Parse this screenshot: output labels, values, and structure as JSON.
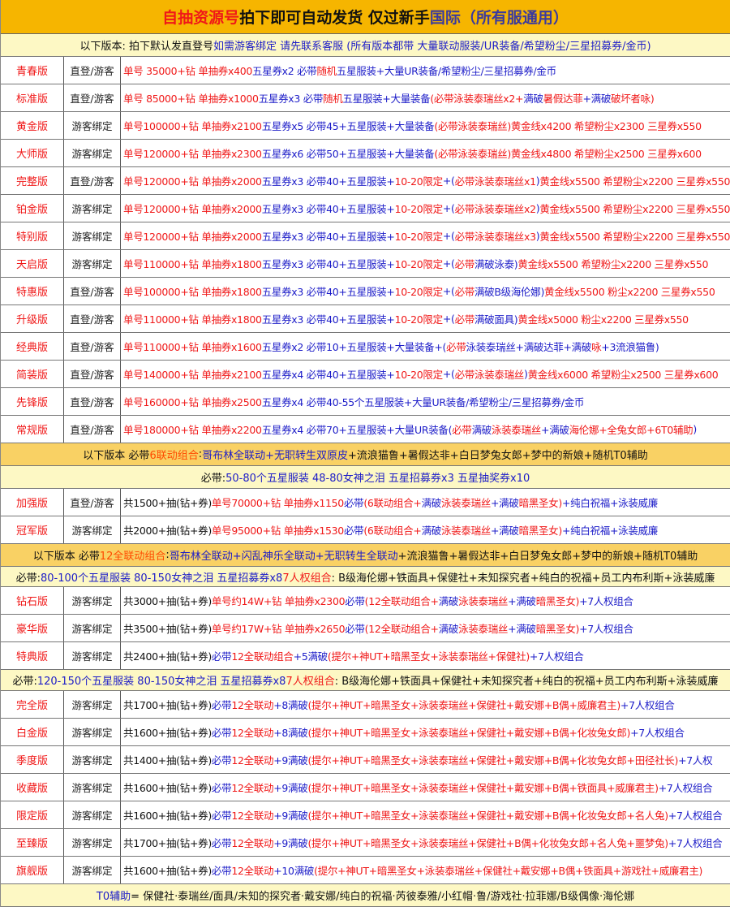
{
  "colors": {
    "red": "#f01818",
    "blue": "#1c1cc8",
    "title_bg": "#f6b500",
    "banner_light": "#fdf8c4",
    "banner_orange": "#f9d164"
  },
  "sections": [
    {
      "kind": "title",
      "h": 42,
      "segs": [
        {
          "c": "r",
          "t": "自抽资源号 "
        },
        {
          "c": "k",
          "t": "拍下即可自动发货 仅过新手 "
        },
        {
          "c": "t",
          "t": "国际（所有服通用）"
        }
      ]
    },
    {
      "kind": "banner",
      "style": "light",
      "h": 28,
      "segs": [
        {
          "c": "k",
          "t": "以下版本: 拍下默认发直登号  "
        },
        {
          "c": "b",
          "t": "如需游客绑定 请先联系客服 (所有版本都带 大量联动服装/UR装备/希望粉尘/三星招募券/金币)"
        }
      ]
    },
    {
      "kind": "row",
      "edition": "青春版",
      "type": "直登/游客",
      "segs": [
        {
          "c": "r",
          "t": "单号  35000+钻 单抽券x400  "
        },
        {
          "c": "b",
          "t": "五星券x2  必带"
        },
        {
          "c": "r",
          "t": "随机"
        },
        {
          "c": "b",
          "t": "五星服装+大量UR装备/希望粉尘/三星招募券/金币"
        }
      ]
    },
    {
      "kind": "row",
      "edition": "标准版",
      "type": "直登/游客",
      "segs": [
        {
          "c": "r",
          "t": "单号  85000+钻 单抽券x1000 "
        },
        {
          "c": "b",
          "t": "五星券x3  必带"
        },
        {
          "c": "r",
          "t": "随机"
        },
        {
          "c": "b",
          "t": "五星服装+大量装备"
        },
        {
          "c": "r",
          "t": "(必带泳装泰瑞丝x2+"
        },
        {
          "c": "b",
          "t": "满破"
        },
        {
          "c": "r",
          "t": "暑假达菲"
        },
        {
          "c": "b",
          "t": "+满破"
        },
        {
          "c": "r",
          "t": "破坏者咏)"
        }
      ]
    },
    {
      "kind": "row",
      "edition": "黄金版",
      "type": "游客绑定",
      "segs": [
        {
          "c": "r",
          "t": "单号100000+钻 单抽券x2100 "
        },
        {
          "c": "b",
          "t": "五星券x5  必带45+五星服装+大量装备"
        },
        {
          "c": "r",
          "t": "(必带泳装泰瑞丝)黄金线x4200 希望粉尘x2300 三星券x550"
        }
      ]
    },
    {
      "kind": "row",
      "edition": "大师版",
      "type": "游客绑定",
      "segs": [
        {
          "c": "r",
          "t": "单号120000+钻 单抽券x2300 "
        },
        {
          "c": "b",
          "t": "五星券x6  必带50+五星服装+大量装备"
        },
        {
          "c": "r",
          "t": "(必带泳装泰瑞丝)黄金线x4800 希望粉尘x2500 三星券x600"
        }
      ]
    },
    {
      "kind": "row",
      "edition": "完整版",
      "type": "直登/游客",
      "segs": [
        {
          "c": "r",
          "t": "单号120000+钻 单抽券x2000 "
        },
        {
          "c": "b",
          "t": "五星券x3  必带40+五星服装+"
        },
        {
          "c": "r",
          "t": "10-20限定"
        },
        {
          "c": "b",
          "t": "+("
        },
        {
          "c": "r",
          "t": "必带泳装泰瑞丝x1"
        },
        {
          "c": "b",
          "t": ")"
        },
        {
          "c": "r",
          "t": "黄金线x5500 希望粉尘x2200 三星券x550"
        }
      ]
    },
    {
      "kind": "row",
      "edition": "铂金版",
      "type": "游客绑定",
      "segs": [
        {
          "c": "r",
          "t": "单号120000+钻 单抽券x2000 "
        },
        {
          "c": "b",
          "t": "五星券x3  必带40+五星服装+"
        },
        {
          "c": "r",
          "t": "10-20限定"
        },
        {
          "c": "b",
          "t": "+("
        },
        {
          "c": "r",
          "t": "必带泳装泰瑞丝x2"
        },
        {
          "c": "b",
          "t": ")"
        },
        {
          "c": "r",
          "t": "黄金线x5500 希望粉尘x2200 三星券x550"
        }
      ]
    },
    {
      "kind": "row",
      "edition": "特别版",
      "type": "游客绑定",
      "segs": [
        {
          "c": "r",
          "t": "单号120000+钻 单抽券x2000 "
        },
        {
          "c": "b",
          "t": "五星券x3  必带40+五星服装+"
        },
        {
          "c": "r",
          "t": "10-20限定"
        },
        {
          "c": "b",
          "t": "+("
        },
        {
          "c": "r",
          "t": "必带泳装泰瑞丝x3"
        },
        {
          "c": "b",
          "t": ")"
        },
        {
          "c": "r",
          "t": "黄金线x5500 希望粉尘x2200 三星券x550"
        }
      ]
    },
    {
      "kind": "row",
      "edition": "天启版",
      "type": "游客绑定",
      "segs": [
        {
          "c": "r",
          "t": "单号110000+钻 单抽券x1800 "
        },
        {
          "c": "b",
          "t": "五星券x3  必带40+五星服装+"
        },
        {
          "c": "r",
          "t": "10-20限定"
        },
        {
          "c": "b",
          "t": "+("
        },
        {
          "c": "r",
          "t": "必带 "
        },
        {
          "c": "b",
          "t": "满破泳泰)"
        },
        {
          "c": "r",
          "t": "黄金线x5500 希望粉尘x2200 三星券x550"
        }
      ]
    },
    {
      "kind": "row",
      "edition": "特惠版",
      "type": "直登/游客",
      "segs": [
        {
          "c": "r",
          "t": "单号100000+钻 单抽券x1800 "
        },
        {
          "c": "b",
          "t": "五星券x3  必带40+五星服装+"
        },
        {
          "c": "r",
          "t": "10-20限定"
        },
        {
          "c": "b",
          "t": "+("
        },
        {
          "c": "r",
          "t": "必带 "
        },
        {
          "c": "b",
          "t": "满破B级海伦娜)"
        },
        {
          "c": "r",
          "t": "黄金线x5500 粉尘x2200 三星券x550"
        }
      ]
    },
    {
      "kind": "row",
      "edition": "升级版",
      "type": "直登/游客",
      "segs": [
        {
          "c": "r",
          "t": "单号110000+钻 单抽券x1800 "
        },
        {
          "c": "b",
          "t": "五星券x3  必带40+五星服装+"
        },
        {
          "c": "r",
          "t": "10-20限定"
        },
        {
          "c": "b",
          "t": "+("
        },
        {
          "c": "r",
          "t": "必带 "
        },
        {
          "c": "b",
          "t": "满破面具)"
        },
        {
          "c": "r",
          "t": "黄金线x5000 粉尘x2200 三星券x550"
        }
      ]
    },
    {
      "kind": "row",
      "edition": "经典版",
      "type": "直登/游客",
      "segs": [
        {
          "c": "r",
          "t": "单号110000+钻 单抽券x1600 "
        },
        {
          "c": "b",
          "t": "五星券x2  必带10+五星服装+大量装备+("
        },
        {
          "c": "r",
          "t": "必带 "
        },
        {
          "c": "b",
          "t": "泳装泰瑞丝+满破达菲+满破"
        },
        {
          "c": "r",
          "t": "咏"
        },
        {
          "c": "b",
          "t": "+3流浪猫鲁)"
        }
      ]
    },
    {
      "kind": "row",
      "edition": "简装版",
      "type": "直登/游客",
      "segs": [
        {
          "c": "r",
          "t": "单号140000+钻 单抽券x2100 "
        },
        {
          "c": "b",
          "t": "五星券x4  必带40+五星服装+"
        },
        {
          "c": "r",
          "t": "10-20限定"
        },
        {
          "c": "b",
          "t": "+("
        },
        {
          "c": "r",
          "t": "必带泳装泰瑞丝"
        },
        {
          "c": "b",
          "t": ")"
        },
        {
          "c": "r",
          "t": "黄金线x6000 希望粉尘x2500 三星券x600"
        }
      ]
    },
    {
      "kind": "row",
      "edition": "先锋版",
      "type": "直登/游客",
      "segs": [
        {
          "c": "r",
          "t": "单号160000+钻 单抽券x2500 "
        },
        {
          "c": "b",
          "t": "五星券x4  必带40-55个五星服装+大量UR装备/希望粉尘/三星招募券/金币"
        }
      ]
    },
    {
      "kind": "row",
      "edition": "常规版",
      "type": "直登/游客",
      "segs": [
        {
          "c": "r",
          "t": "单号180000+钻 单抽券x2200 "
        },
        {
          "c": "b",
          "t": "五星券x4  必带70+五星服装+大量UR装备("
        },
        {
          "c": "r",
          "t": "必带 "
        },
        {
          "c": "b",
          "t": "满破"
        },
        {
          "c": "r",
          "t": "泳装泰瑞丝"
        },
        {
          "c": "b",
          "t": "+满破"
        },
        {
          "c": "r",
          "t": "海伦娜+全兔女郎+6T0辅助"
        },
        {
          "c": "b",
          "t": ")"
        }
      ]
    },
    {
      "kind": "banner",
      "style": "orange",
      "h": 28,
      "segs": [
        {
          "c": "k",
          "t": "以下版本 必带 "
        },
        {
          "c": "o",
          "t": "6联动组合"
        },
        {
          "c": "k",
          "t": ": "
        },
        {
          "c": "b",
          "t": "哥布林全联动+无职转生双原皮"
        },
        {
          "c": "k",
          "t": "+流浪猫鲁+暑假达非+白日梦兔女郎+梦中的新娘+随机T0辅助"
        }
      ]
    },
    {
      "kind": "banner",
      "style": "light",
      "h": 28,
      "segs": [
        {
          "c": "k",
          "t": "必带: "
        },
        {
          "c": "b",
          "t": "50-80个五星服装 48-80女神之泪 五星招募券x3 五星抽奖券x10"
        }
      ]
    },
    {
      "kind": "row",
      "edition": "加强版",
      "type": "直登/游客",
      "segs": [
        {
          "c": "k",
          "t": "共1500+抽(钻+券) "
        },
        {
          "c": "r",
          "t": "单号70000+钻 单抽券x1150 "
        },
        {
          "c": "b",
          "t": "必带"
        },
        {
          "c": "r",
          "t": "(6联动组合+"
        },
        {
          "c": "b",
          "t": "满破"
        },
        {
          "c": "r",
          "t": "泳装泰瑞丝"
        },
        {
          "c": "b",
          "t": "+满破"
        },
        {
          "c": "r",
          "t": "暗黑圣女)"
        },
        {
          "c": "b",
          "t": "+纯白祝福+泳装威廉"
        }
      ]
    },
    {
      "kind": "row",
      "edition": "冠军版",
      "type": "游客绑定",
      "segs": [
        {
          "c": "k",
          "t": "共2000+抽(钻+券) "
        },
        {
          "c": "r",
          "t": "单号95000+钻 单抽券x1530 "
        },
        {
          "c": "b",
          "t": "必带"
        },
        {
          "c": "r",
          "t": "(6联动组合+"
        },
        {
          "c": "b",
          "t": "满破"
        },
        {
          "c": "r",
          "t": "泳装泰瑞丝"
        },
        {
          "c": "b",
          "t": "+满破"
        },
        {
          "c": "r",
          "t": "暗黑圣女)"
        },
        {
          "c": "b",
          "t": "+纯白祝福+泳装威廉"
        }
      ]
    },
    {
      "kind": "banner",
      "style": "orange",
      "h": 28,
      "segs": [
        {
          "c": "k",
          "t": "以下版本 必带 "
        },
        {
          "c": "o",
          "t": "12全联动组合"
        },
        {
          "c": "k",
          "t": ": "
        },
        {
          "c": "b",
          "t": "哥布林全联动+闪乱神乐全联动+无职转生全联动"
        },
        {
          "c": "k",
          "t": "+流浪猫鲁+暑假达非+白日梦兔女郎+梦中的新娘+随机T0辅助"
        }
      ]
    },
    {
      "kind": "banner",
      "style": "light",
      "h": 25,
      "segs": [
        {
          "c": "k",
          "t": "必带: "
        },
        {
          "c": "b",
          "t": "80-100个五星服装 80-150女神之泪 五星招募券x8 "
        },
        {
          "c": "r",
          "t": "7人权组合"
        },
        {
          "c": "k",
          "t": ": B级海伦娜+铁面具+保健社+未知探究者+纯白的祝福+员工内布利斯+泳装威廉"
        }
      ]
    },
    {
      "kind": "row",
      "edition": "钻石版",
      "type": "游客绑定",
      "segs": [
        {
          "c": "k",
          "t": "共3000+抽(钻+券) "
        },
        {
          "c": "r",
          "t": "单号约14W+钻 单抽券x2300 "
        },
        {
          "c": "b",
          "t": "必带"
        },
        {
          "c": "r",
          "t": "(12全联动组合+"
        },
        {
          "c": "b",
          "t": "满破"
        },
        {
          "c": "r",
          "t": "泳装泰瑞丝"
        },
        {
          "c": "b",
          "t": "+满破"
        },
        {
          "c": "r",
          "t": "暗黑圣女)"
        },
        {
          "c": "b",
          "t": "+7人权组合"
        }
      ]
    },
    {
      "kind": "row",
      "edition": "豪华版",
      "type": "游客绑定",
      "segs": [
        {
          "c": "k",
          "t": "共3500+抽(钻+券) "
        },
        {
          "c": "r",
          "t": "单号约17W+钻 单抽券x2650 "
        },
        {
          "c": "b",
          "t": "必带"
        },
        {
          "c": "r",
          "t": "(12全联动组合+"
        },
        {
          "c": "b",
          "t": "满破"
        },
        {
          "c": "r",
          "t": "泳装泰瑞丝"
        },
        {
          "c": "b",
          "t": "+满破"
        },
        {
          "c": "r",
          "t": "暗黑圣女)"
        },
        {
          "c": "b",
          "t": "+7人权组合"
        }
      ]
    },
    {
      "kind": "row",
      "edition": "特典版",
      "type": "游客绑定",
      "segs": [
        {
          "c": "k",
          "t": "共2400+抽(钻+券) "
        },
        {
          "c": "b",
          "t": "必带 "
        },
        {
          "c": "r",
          "t": "12全联动组合"
        },
        {
          "c": "b",
          "t": "+5满破"
        },
        {
          "c": "r",
          "t": "(提尔+神UT+暗黑圣女+泳装泰瑞丝+保健社)"
        },
        {
          "c": "b",
          "t": "+7人权组合"
        }
      ]
    },
    {
      "kind": "banner",
      "style": "light",
      "h": 26,
      "segs": [
        {
          "c": "k",
          "t": "必带: "
        },
        {
          "c": "b",
          "t": "120-150个五星服装 80-150女神之泪 五星招募券x8 "
        },
        {
          "c": "r",
          "t": "7人权组合"
        },
        {
          "c": "k",
          "t": ": B级海伦娜+铁面具+保健社+未知探究者+纯白的祝福+员工内布利斯+泳装威廉"
        }
      ]
    },
    {
      "kind": "row",
      "edition": "完全版",
      "type": "游客绑定",
      "segs": [
        {
          "c": "k",
          "t": "共1700+抽(钻+券) "
        },
        {
          "c": "b",
          "t": "必带 "
        },
        {
          "c": "r",
          "t": "12全联动"
        },
        {
          "c": "b",
          "t": "+8满破"
        },
        {
          "c": "r",
          "t": "(提尔+神UT+暗黑圣女+泳装泰瑞丝+保健社+戴安娜+B偶+威廉君主)"
        },
        {
          "c": "b",
          "t": "+7人权组合"
        }
      ]
    },
    {
      "kind": "row",
      "edition": "白金版",
      "type": "游客绑定",
      "segs": [
        {
          "c": "k",
          "t": "共1600+抽(钻+券) "
        },
        {
          "c": "b",
          "t": "必带 "
        },
        {
          "c": "r",
          "t": "12全联动"
        },
        {
          "c": "b",
          "t": "+8满破"
        },
        {
          "c": "r",
          "t": "(提尔+神UT+暗黑圣女+泳装泰瑞丝+保健社+戴安娜+B偶+化妆兔女郎)"
        },
        {
          "c": "b",
          "t": "+7人权组合"
        }
      ]
    },
    {
      "kind": "row",
      "edition": "季度版",
      "type": "游客绑定",
      "segs": [
        {
          "c": "k",
          "t": "共1400+抽(钻+券) "
        },
        {
          "c": "b",
          "t": "必带 "
        },
        {
          "c": "r",
          "t": "12全联动"
        },
        {
          "c": "b",
          "t": "+9满破"
        },
        {
          "c": "r",
          "t": "(提尔+神UT+暗黑圣女+泳装泰瑞丝+保健社+戴安娜+B偶+化妆兔女郎+田径社长)"
        },
        {
          "c": "b",
          "t": "+7人权"
        }
      ]
    },
    {
      "kind": "row",
      "edition": "收藏版",
      "type": "游客绑定",
      "segs": [
        {
          "c": "k",
          "t": "共1600+抽(钻+券) "
        },
        {
          "c": "b",
          "t": "必带 "
        },
        {
          "c": "r",
          "t": "12全联动"
        },
        {
          "c": "b",
          "t": "+9满破"
        },
        {
          "c": "r",
          "t": "(提尔+神UT+暗黑圣女+泳装泰瑞丝+保健社+戴安娜+B偶+铁面具+威廉君主)"
        },
        {
          "c": "b",
          "t": "+7人权组合"
        }
      ]
    },
    {
      "kind": "row",
      "edition": "限定版",
      "type": "游客绑定",
      "segs": [
        {
          "c": "k",
          "t": "共1600+抽(钻+券) "
        },
        {
          "c": "b",
          "t": "必带 "
        },
        {
          "c": "r",
          "t": "12全联动"
        },
        {
          "c": "b",
          "t": "+9满破"
        },
        {
          "c": "r",
          "t": "(提尔+神UT+暗黑圣女+泳装泰瑞丝+保健社+戴安娜+B偶+化妆兔女郎+名人兔)"
        },
        {
          "c": "b",
          "t": "+7人权组合"
        }
      ]
    },
    {
      "kind": "row",
      "edition": "至臻版",
      "type": "游客绑定",
      "segs": [
        {
          "c": "k",
          "t": "共1700+抽(钻+券) "
        },
        {
          "c": "b",
          "t": "必带 "
        },
        {
          "c": "r",
          "t": "12全联动"
        },
        {
          "c": "b",
          "t": "+9满破"
        },
        {
          "c": "r",
          "t": "(提尔+神UT+暗黑圣女+泳装泰瑞丝+保健社+B偶+化妆兔女郎+名人兔+噩梦兔)"
        },
        {
          "c": "b",
          "t": "+7人权组合"
        }
      ]
    },
    {
      "kind": "row",
      "edition": "旗舰版",
      "type": "游客绑定",
      "segs": [
        {
          "c": "k",
          "t": "共1600+抽(钻+券) "
        },
        {
          "c": "b",
          "t": "必带 "
        },
        {
          "c": "r",
          "t": "12全联动"
        },
        {
          "c": "b",
          "t": "+10满破"
        },
        {
          "c": "r",
          "t": "(提尔+神UT+暗黑圣女+泳装泰瑞丝+保健社+戴安娜+B偶+铁面具+游戏社+威廉君主)"
        }
      ]
    },
    {
      "kind": "banner",
      "style": "light",
      "h": 28,
      "segs": [
        {
          "c": "b",
          "t": "T0辅助"
        },
        {
          "c": "k",
          "t": " = 保健社·泰瑞丝/面具/未知的探究者·戴安娜/纯白的祝福·芮彼泰雅/小红帽·鲁/游戏社·拉菲娜/B级偶像·海伦娜"
        }
      ]
    }
  ]
}
